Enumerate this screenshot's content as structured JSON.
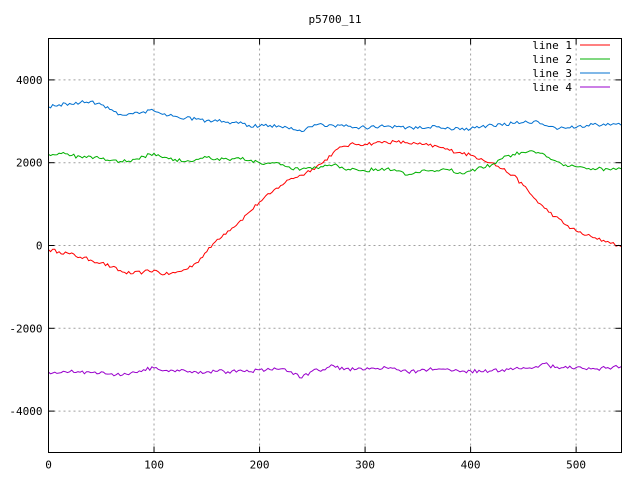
{
  "chart_data": {
    "type": "line",
    "title": "p5700_11",
    "xlabel": "",
    "ylabel": "",
    "xlim": [
      0,
      543
    ],
    "ylim": [
      -5000,
      5000
    ],
    "xticks": [
      0,
      100,
      200,
      300,
      400,
      500
    ],
    "yticks": [
      -4000,
      -2000,
      0,
      2000,
      4000
    ],
    "grid": true,
    "legend_position": "top-right",
    "x": [
      0,
      10,
      20,
      30,
      40,
      50,
      60,
      70,
      80,
      90,
      100,
      110,
      120,
      130,
      140,
      150,
      160,
      170,
      180,
      190,
      200,
      210,
      220,
      230,
      240,
      250,
      260,
      270,
      280,
      290,
      300,
      310,
      320,
      330,
      340,
      350,
      360,
      370,
      380,
      390,
      400,
      410,
      420,
      430,
      440,
      450,
      460,
      470,
      480,
      490,
      500,
      510,
      520,
      530,
      543
    ],
    "series": [
      {
        "name": "line 1",
        "color": "#ff0000",
        "values": [
          -100,
          -150,
          -200,
          -280,
          -350,
          -420,
          -520,
          -640,
          -680,
          -640,
          -600,
          -700,
          -660,
          -580,
          -420,
          -150,
          150,
          350,
          550,
          800,
          1050,
          1250,
          1450,
          1620,
          1700,
          1850,
          2000,
          2250,
          2400,
          2450,
          2450,
          2480,
          2500,
          2500,
          2480,
          2450,
          2420,
          2380,
          2300,
          2250,
          2180,
          2100,
          2000,
          1850,
          1700,
          1450,
          1150,
          900,
          700,
          500,
          350,
          250,
          150,
          100,
          -30
        ]
      },
      {
        "name": "line 2",
        "color": "#00b000",
        "values": [
          2200,
          2230,
          2170,
          2150,
          2150,
          2100,
          2060,
          2020,
          2080,
          2150,
          2230,
          2130,
          2080,
          2030,
          2080,
          2130,
          2100,
          2080,
          2120,
          2050,
          2000,
          1980,
          1950,
          1850,
          1850,
          1850,
          1900,
          1950,
          1850,
          1850,
          1800,
          1850,
          1850,
          1800,
          1700,
          1760,
          1800,
          1800,
          1820,
          1760,
          1800,
          1900,
          1950,
          2100,
          2200,
          2250,
          2270,
          2200,
          2050,
          1950,
          1900,
          1850,
          1850,
          1850,
          1850
        ]
      },
      {
        "name": "line 3",
        "color": "#0070d0",
        "values": [
          3350,
          3400,
          3430,
          3450,
          3480,
          3400,
          3280,
          3150,
          3180,
          3230,
          3250,
          3180,
          3120,
          3080,
          3050,
          3020,
          3000,
          2980,
          2950,
          2900,
          2880,
          2900,
          2870,
          2850,
          2750,
          2870,
          2920,
          2900,
          2880,
          2850,
          2850,
          2850,
          2880,
          2870,
          2850,
          2830,
          2850,
          2870,
          2830,
          2800,
          2820,
          2870,
          2920,
          2900,
          2950,
          2970,
          3000,
          2900,
          2850,
          2830,
          2850,
          2900,
          2920,
          2950,
          2900
        ]
      },
      {
        "name": "line 4",
        "color": "#9900cc",
        "values": [
          -3060,
          -3080,
          -3050,
          -3060,
          -3070,
          -3050,
          -3100,
          -3130,
          -3050,
          -3000,
          -2960,
          -3020,
          -3050,
          -3030,
          -3050,
          -3050,
          -3040,
          -3050,
          -3020,
          -3050,
          -3000,
          -3000,
          -2980,
          -3050,
          -3200,
          -3030,
          -3000,
          -2900,
          -3000,
          -3000,
          -3000,
          -2980,
          -2950,
          -3000,
          -3050,
          -3030,
          -3000,
          -2980,
          -3000,
          -3050,
          -3030,
          -3050,
          -3030,
          -3000,
          -3000,
          -2950,
          -2950,
          -2850,
          -2950,
          -2920,
          -2950,
          -3000,
          -2980,
          -2950,
          -2920
        ]
      }
    ]
  }
}
